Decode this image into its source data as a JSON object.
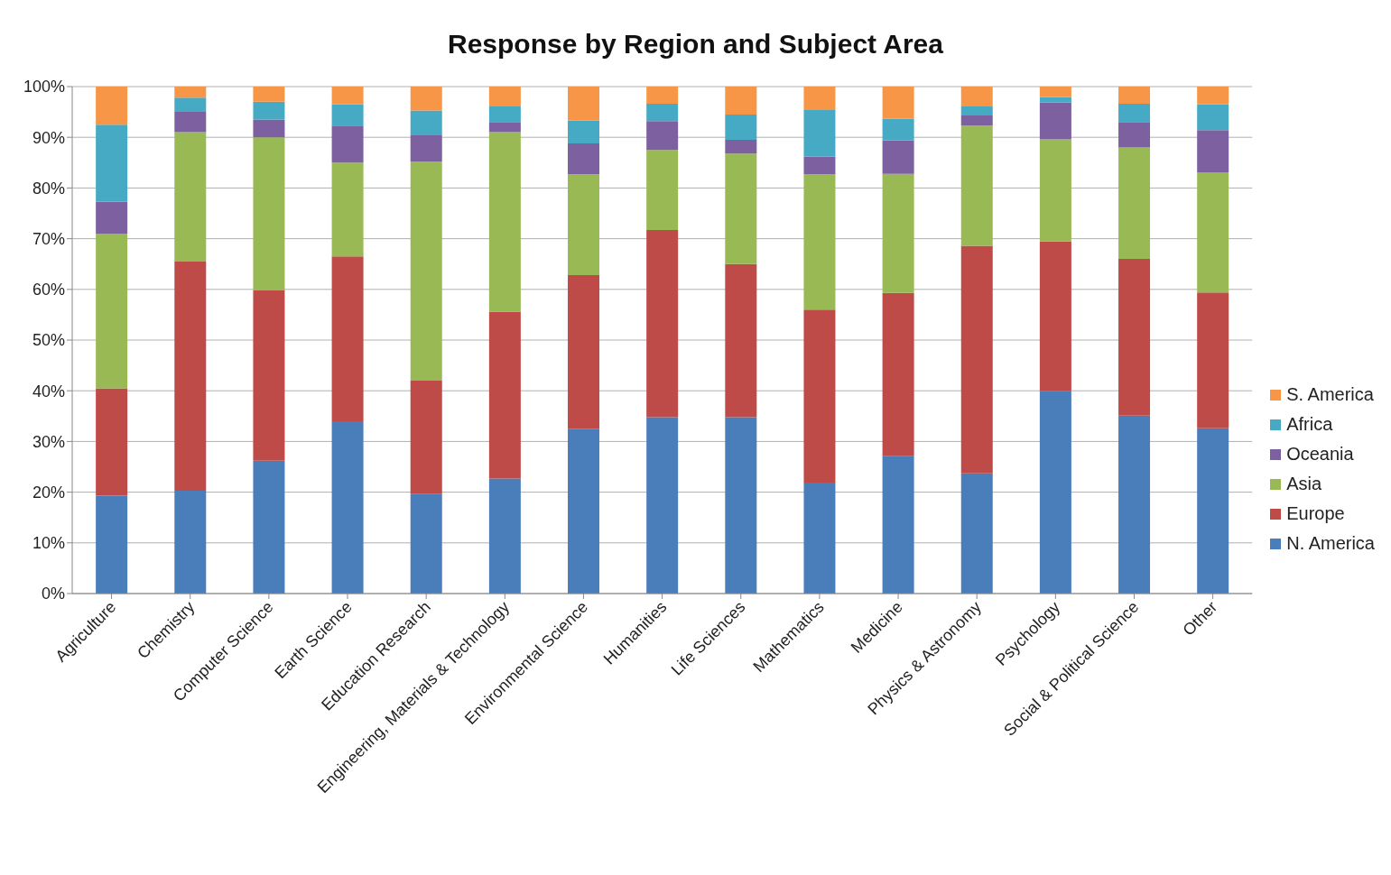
{
  "chart_data": {
    "type": "bar",
    "title": "Response by Region and Subject Area",
    "stacked": true,
    "grid": "y",
    "legend": "right",
    "categories": [
      "Agriculture",
      "Chemistry",
      "Computer Science",
      "Earth Science",
      "Education Research",
      "Engineering, Materials & Technology",
      "Environmental Science",
      "Humanities",
      "Life Sciences",
      "Mathematics",
      "Medicine",
      "Physics & Astronomy",
      "Psychology",
      "Social & Political Science",
      "Other"
    ],
    "ylim": [
      0,
      100
    ],
    "yticks": [
      {
        "value": 0,
        "label": "0%"
      },
      {
        "value": 10,
        "label": "10%"
      },
      {
        "value": 20,
        "label": "20%"
      },
      {
        "value": 30,
        "label": "30%"
      },
      {
        "value": 40,
        "label": "40%"
      },
      {
        "value": 50,
        "label": "50%"
      },
      {
        "value": 60,
        "label": "60%"
      },
      {
        "value": 70,
        "label": "70%"
      },
      {
        "value": 80,
        "label": "80%"
      },
      {
        "value": 90,
        "label": "90%"
      },
      {
        "value": 100,
        "label": "100%"
      }
    ],
    "series": [
      {
        "name": "N. America",
        "color": "#4a7ebb",
        "values": [
          19.3,
          20.3,
          26.2,
          34,
          19.6,
          22.7,
          32.5,
          34.8,
          34.8,
          21.9,
          27.1,
          23.7,
          40,
          35.1,
          32.6
        ]
      },
      {
        "name": "Europe",
        "color": "#be4b48",
        "values": [
          21.2,
          45.2,
          33.6,
          32.5,
          22.4,
          32.9,
          30.3,
          36.9,
          30.2,
          34.1,
          32.2,
          44.9,
          29.5,
          30.9,
          26.8
        ]
      },
      {
        "name": "Asia",
        "color": "#98b954",
        "values": [
          30.5,
          25.5,
          30.2,
          18.5,
          43.2,
          35.4,
          19.9,
          15.8,
          21.8,
          26.7,
          23.5,
          23.7,
          20.1,
          22,
          23.7
        ]
      },
      {
        "name": "Oceania",
        "color": "#7d60a0",
        "values": [
          6.3,
          4,
          3.5,
          7.3,
          5.2,
          2,
          6.1,
          5.7,
          2.7,
          3.5,
          6.6,
          2,
          7.3,
          5,
          8.3
        ]
      },
      {
        "name": "Africa",
        "color": "#46aac5",
        "values": [
          15.2,
          2.8,
          3.5,
          4.2,
          4.9,
          3.1,
          4.5,
          3.4,
          5,
          9.3,
          4.3,
          1.9,
          1,
          3.6,
          5.1
        ]
      },
      {
        "name": "S. America",
        "color": "#f79646",
        "values": [
          7.5,
          2.2,
          3,
          3.5,
          4.7,
          3.9,
          6.7,
          3.4,
          5.5,
          4.5,
          6.3,
          3.8,
          2.1,
          3.4,
          3.5
        ]
      }
    ]
  }
}
